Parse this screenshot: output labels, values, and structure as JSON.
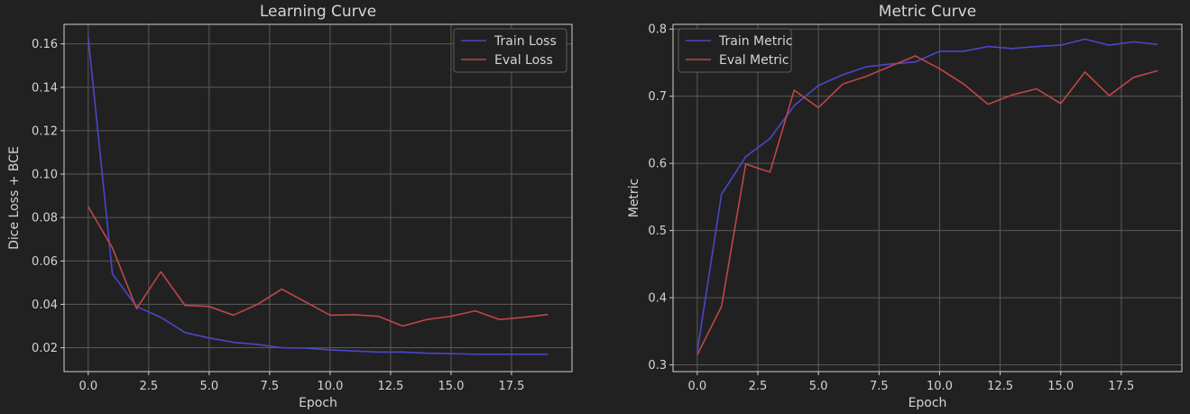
{
  "chart_data": [
    {
      "type": "line",
      "title": "Learning Curve",
      "xlabel": "Epoch",
      "ylabel": "Dice Loss + BCE",
      "xlim": [
        -1,
        20
      ],
      "ylim": [
        0.009,
        0.169
      ],
      "xticks": [
        0,
        2.5,
        5,
        7.5,
        10,
        12.5,
        15,
        17.5
      ],
      "xtick_labels": [
        "0.0",
        "2.5",
        "5.0",
        "7.5",
        "10.0",
        "12.5",
        "15.0",
        "17.5"
      ],
      "yticks": [
        0.02,
        0.04,
        0.06,
        0.08,
        0.1,
        0.12,
        0.14,
        0.16
      ],
      "ytick_labels": [
        "0.02",
        "0.04",
        "0.06",
        "0.08",
        "0.10",
        "0.12",
        "0.14",
        "0.16"
      ],
      "grid": true,
      "legend_position": "top-right",
      "x": [
        0,
        1,
        2,
        3,
        4,
        5,
        6,
        7,
        8,
        9,
        10,
        11,
        12,
        13,
        14,
        15,
        16,
        17,
        18,
        19
      ],
      "series": [
        {
          "name": "Train Loss",
          "color": "#4a47c9",
          "values": [
            0.163,
            0.054,
            0.039,
            0.034,
            0.027,
            0.0245,
            0.0225,
            0.0215,
            0.02,
            0.0198,
            0.019,
            0.0185,
            0.018,
            0.018,
            0.0175,
            0.0173,
            0.017,
            0.017,
            0.017,
            0.017
          ]
        },
        {
          "name": "Eval Loss",
          "color": "#c04646",
          "values": [
            0.085,
            0.066,
            0.038,
            0.055,
            0.0395,
            0.039,
            0.035,
            0.04,
            0.047,
            0.041,
            0.035,
            0.0352,
            0.0345,
            0.03,
            0.033,
            0.0345,
            0.037,
            0.033,
            0.034,
            0.0353
          ]
        }
      ]
    },
    {
      "type": "line",
      "title": "Metric Curve",
      "xlabel": "Epoch",
      "ylabel": "Metric",
      "xlim": [
        -1,
        20
      ],
      "ylim": [
        0.29,
        0.807
      ],
      "xticks": [
        0,
        2.5,
        5,
        7.5,
        10,
        12.5,
        15,
        17.5
      ],
      "xtick_labels": [
        "0.0",
        "2.5",
        "5.0",
        "7.5",
        "10.0",
        "12.5",
        "15.0",
        "17.5"
      ],
      "yticks": [
        0.3,
        0.4,
        0.5,
        0.6,
        0.7,
        0.8
      ],
      "ytick_labels": [
        "0.3",
        "0.4",
        "0.5",
        "0.6",
        "0.7",
        "0.8"
      ],
      "grid": true,
      "legend_position": "top-left",
      "x": [
        0,
        1,
        2,
        3,
        4,
        5,
        6,
        7,
        8,
        9,
        10,
        11,
        12,
        13,
        14,
        15,
        16,
        17,
        18,
        19
      ],
      "series": [
        {
          "name": "Train Metric",
          "color": "#4a47c9",
          "values": [
            0.32,
            0.554,
            0.61,
            0.637,
            0.686,
            0.716,
            0.732,
            0.744,
            0.748,
            0.751,
            0.767,
            0.767,
            0.774,
            0.771,
            0.774,
            0.776,
            0.785,
            0.776,
            0.781,
            0.777
          ]
        },
        {
          "name": "Eval Metric",
          "color": "#c04646",
          "values": [
            0.315,
            0.387,
            0.599,
            0.587,
            0.709,
            0.683,
            0.718,
            0.73,
            0.745,
            0.76,
            0.741,
            0.718,
            0.688,
            0.702,
            0.711,
            0.689,
            0.736,
            0.701,
            0.728,
            0.738
          ]
        }
      ]
    }
  ]
}
